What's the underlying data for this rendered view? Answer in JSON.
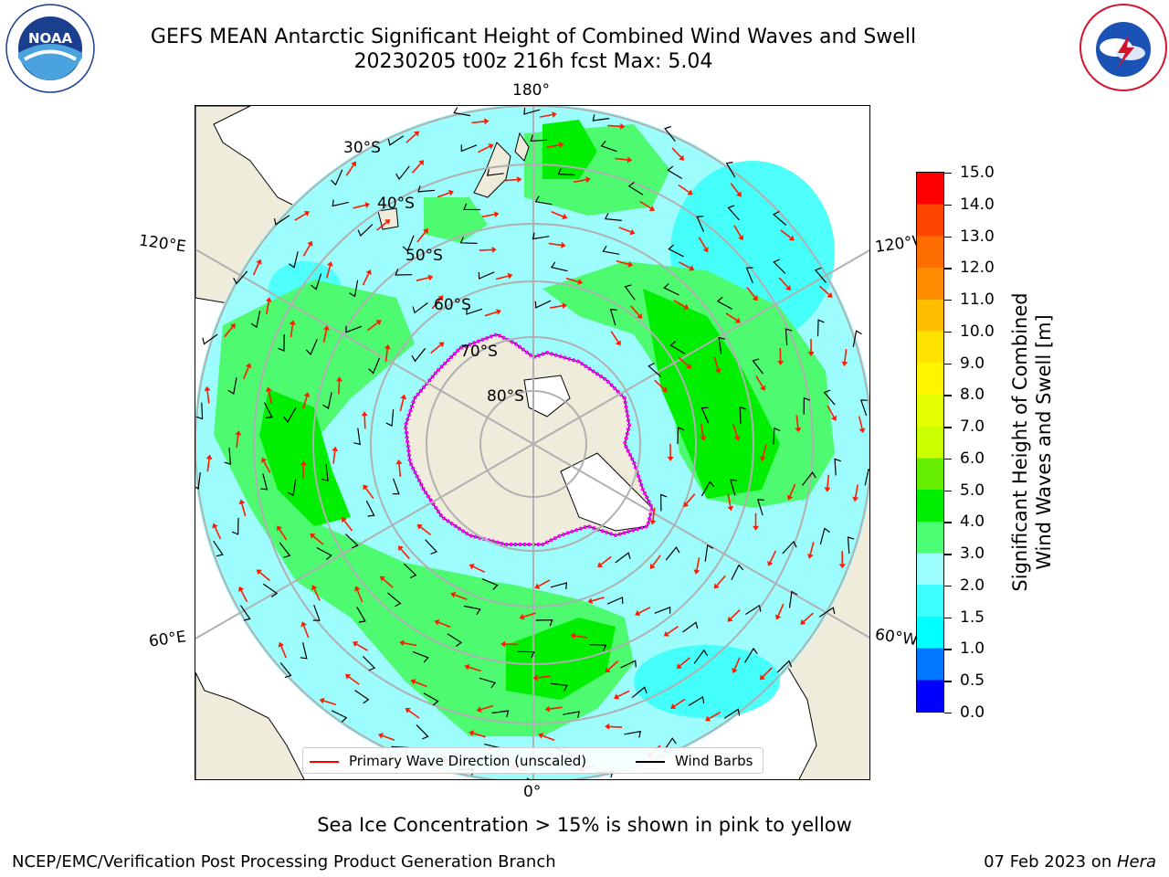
{
  "title": {
    "line1": "GEFS MEAN Antarctic Significant Height of Combined Wind Waves and Swell",
    "line2": "20230205 t00z 216h fcst   Max: 5.04"
  },
  "map": {
    "meridian_labels": {
      "top": "180°",
      "bottom": "0°",
      "upper_left": "120°E",
      "lower_left": "60°E",
      "upper_right": "120°W",
      "lower_right": "60°W"
    },
    "parallel_labels": [
      "30°S",
      "40°S",
      "50°S",
      "60°S",
      "70°S",
      "80°S"
    ],
    "colors": {
      "land": "#efecdc",
      "water_low": "#9dfdfd",
      "water_mid": "#3cfffa",
      "water_high": "#4efa6e",
      "water_max": "#00ef00",
      "grid": "#b0b0b0",
      "arrow": "#ff1a00",
      "ice": "#ff00ff"
    }
  },
  "colorbar": {
    "title_line1": "Significant Height of Combined",
    "title_line2": "Wind Waves and Swell [m]",
    "ticks": [
      "0.0",
      "0.5",
      "1.0",
      "1.5",
      "2.0",
      "3.0",
      "4.0",
      "5.0",
      "6.0",
      "7.0",
      "8.0",
      "9.0",
      "10.0",
      "11.0",
      "12.0",
      "13.0",
      "14.0",
      "15.0"
    ],
    "colors": [
      "#0000ff",
      "#0077ff",
      "#00ffff",
      "#3effff",
      "#9dffff",
      "#4dff75",
      "#00ee00",
      "#66ee00",
      "#ccff00",
      "#e6ff00",
      "#fff500",
      "#ffe100",
      "#ffbe00",
      "#ff8c00",
      "#ff6e00",
      "#ff4600",
      "#ff0000"
    ]
  },
  "legend": {
    "wave_label": "Primary Wave Direction (unscaled)",
    "barb_label": "Wind Barbs",
    "wave_color": "#ff0000",
    "barb_color": "#000000"
  },
  "ice_note": "Sea Ice Concentration > 15% is shown in pink to yellow",
  "footer": {
    "left": "NCEP/EMC/Verification Post Processing Product Generation Branch",
    "date": "07 Feb 2023 on ",
    "host": "Hera"
  }
}
